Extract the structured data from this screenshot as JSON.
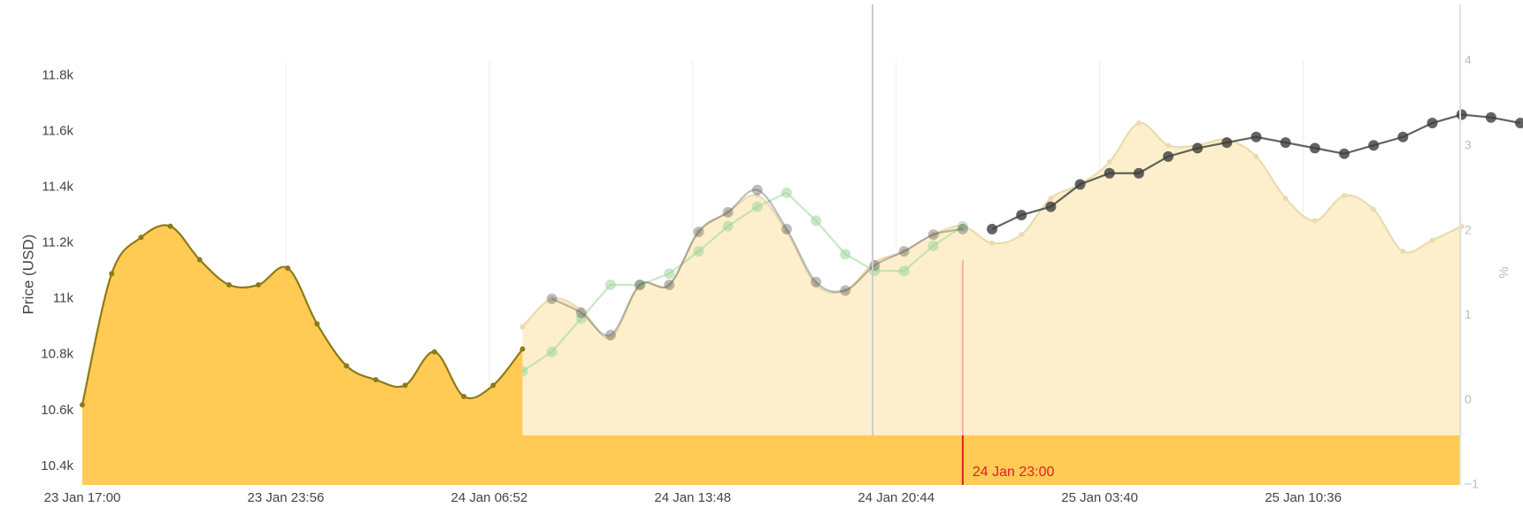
{
  "chart_data": {
    "type": "line",
    "y_label": "Price (USD)",
    "y2_label": "%",
    "x": [
      "23 Jan 17:00",
      "23 Jan 18:00",
      "23 Jan 19:00",
      "23 Jan 20:00",
      "23 Jan 21:00",
      "23 Jan 22:00",
      "23 Jan 23:00",
      "24 Jan 00:00",
      "24 Jan 01:00",
      "24 Jan 02:00",
      "24 Jan 03:00",
      "24 Jan 04:00",
      "24 Jan 05:00",
      "24 Jan 06:00",
      "24 Jan 07:00",
      "24 Jan 08:00",
      "24 Jan 09:00",
      "24 Jan 10:00",
      "24 Jan 11:00",
      "24 Jan 12:00",
      "24 Jan 13:00",
      "24 Jan 14:00",
      "24 Jan 15:00",
      "24 Jan 16:00",
      "24 Jan 17:00",
      "24 Jan 18:00",
      "24 Jan 19:00",
      "24 Jan 20:00",
      "24 Jan 21:00",
      "24 Jan 22:00",
      "24 Jan 23:00",
      "25 Jan 00:00",
      "25 Jan 01:00",
      "25 Jan 02:00",
      "25 Jan 03:00",
      "25 Jan 04:00",
      "25 Jan 05:00",
      "25 Jan 06:00",
      "25 Jan 07:00",
      "25 Jan 08:00",
      "25 Jan 09:00",
      "25 Jan 10:00",
      "25 Jan 11:00",
      "25 Jan 12:00",
      "25 Jan 13:00",
      "25 Jan 14:00",
      "25 Jan 15:00",
      "25 Jan 16:00",
      "25 Jan 17:00",
      "25 Jan 18:00"
    ],
    "xlim": [
      "23 Jan 17:00",
      "25 Jan 18:00"
    ],
    "xticks": [
      "23 Jan 17:00",
      "23 Jan 23:56",
      "24 Jan 06:52",
      "24 Jan 13:48",
      "24 Jan 20:44",
      "25 Jan 03:40",
      "25 Jan 10:36"
    ],
    "ylim": [
      10333,
      11852
    ],
    "yticks": [
      {
        "value": 10400,
        "label": "10.4k"
      },
      {
        "value": 10600,
        "label": "10.6k"
      },
      {
        "value": 10800,
        "label": "10.8k"
      },
      {
        "value": 11000,
        "label": "11k"
      },
      {
        "value": 11200,
        "label": "11.2k"
      },
      {
        "value": 11400,
        "label": "11.4k"
      },
      {
        "value": 11600,
        "label": "11.6k"
      },
      {
        "value": 11800,
        "label": "11.8k"
      }
    ],
    "y2lim": [
      -1,
      4
    ],
    "y2ticks": [
      {
        "value": -1,
        "label": "−1"
      },
      0,
      1,
      2,
      3,
      4
    ],
    "grid": true,
    "annotation": "24 Jan 23:00",
    "series": [
      {
        "color": "#fdefcb",
        "line_color": "#eadbb0",
        "fill": true,
        "smooth": true,
        "marker": 3,
        "values": [
          null,
          null,
          null,
          null,
          null,
          null,
          null,
          null,
          null,
          null,
          null,
          null,
          null,
          null,
          null,
          10900,
          11000,
          10960,
          10860,
          11050,
          11050,
          11240,
          11310,
          11370,
          11240,
          11050,
          11030,
          11130,
          11170,
          11230,
          11260,
          11200,
          11230,
          11360,
          11410,
          11490,
          11630,
          11550,
          11550,
          11570,
          11510,
          11360,
          11280,
          11370,
          11320,
          11170,
          11210,
          11260,
          null,
          null
        ]
      },
      {
        "color": "#9bd59b",
        "opacity": 0.55,
        "smooth": false,
        "marker": 6,
        "values": [
          null,
          null,
          null,
          null,
          null,
          null,
          null,
          null,
          null,
          null,
          null,
          null,
          null,
          null,
          null,
          10740,
          10810,
          10930,
          11050,
          11050,
          11090,
          11170,
          11260,
          11330,
          11380,
          11280,
          11160,
          11100,
          11100,
          11190,
          11260,
          null,
          null,
          null,
          null,
          null,
          null,
          null,
          null,
          null,
          null,
          null,
          null,
          null,
          null,
          null,
          null,
          null,
          null,
          null
        ]
      },
      {
        "color": "#5a5a5a",
        "opacity": 0.4,
        "smooth": true,
        "marker": 6,
        "values": [
          null,
          null,
          null,
          null,
          null,
          null,
          null,
          null,
          null,
          null,
          null,
          null,
          null,
          null,
          null,
          null,
          11000,
          10950,
          10870,
          11050,
          11050,
          11240,
          11310,
          11390,
          11250,
          11060,
          11030,
          11120,
          11170,
          11230,
          11250,
          null,
          null,
          null,
          null,
          null,
          null,
          null,
          null,
          null,
          null,
          null,
          null,
          null,
          null,
          null,
          null,
          null,
          null,
          null
        ]
      },
      {
        "color": "#3c3c3c",
        "opacity": 0.8,
        "smooth": false,
        "marker": 6,
        "values": [
          null,
          null,
          null,
          null,
          null,
          null,
          null,
          null,
          null,
          null,
          null,
          null,
          null,
          null,
          null,
          null,
          null,
          null,
          null,
          null,
          null,
          null,
          null,
          null,
          null,
          null,
          null,
          null,
          null,
          null,
          null,
          11250,
          11300,
          11330,
          11410,
          11450,
          11450,
          11510,
          11540,
          11560,
          11580,
          11560,
          11540,
          11520,
          11550,
          11580,
          11630,
          11660,
          11650,
          11630
        ]
      },
      {
        "color": "#ffcb55",
        "line_color": "#8c7a18",
        "fill": true,
        "smooth": true,
        "marker": 3,
        "values": [
          10620,
          11090,
          11220,
          11260,
          11140,
          11050,
          11050,
          11110,
          10910,
          10760,
          10710,
          10690,
          10810,
          10650,
          10690,
          10820,
          null,
          null,
          null,
          null,
          null,
          null,
          null,
          null,
          null,
          null,
          null,
          null,
          null,
          null,
          null,
          null,
          null,
          null,
          null,
          null,
          null,
          null,
          null,
          null,
          null,
          null,
          null,
          null,
          null,
          null,
          null,
          null,
          null,
          null
        ]
      }
    ]
  }
}
